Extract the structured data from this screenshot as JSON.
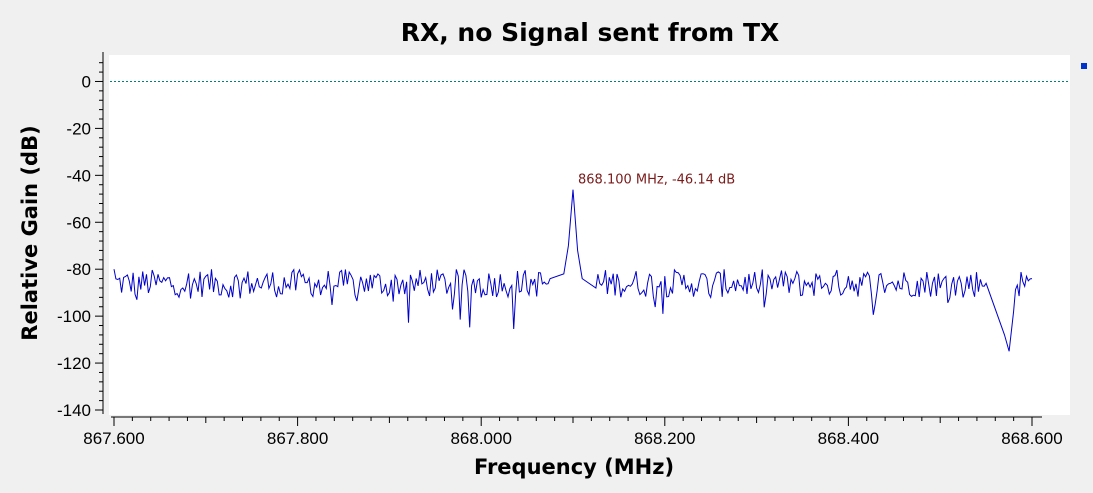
{
  "colors": {
    "background": "#f0f0f0",
    "plot_background": "#ffffff",
    "trace": "#0000cc",
    "reference_line": "#008080",
    "marker_text": "#7a1a1a",
    "legend_marker": "#0033cc"
  },
  "chart_data": {
    "type": "line",
    "title": "RX, no Signal sent from TX",
    "xlabel": "Frequency (MHz)",
    "ylabel": "Relative Gain (dB)",
    "xlim": [
      867.6,
      868.6
    ],
    "ylim": [
      -140,
      10
    ],
    "x_ticks": [
      "867.600",
      "867.800",
      "868.000",
      "868.200",
      "868.400",
      "868.600"
    ],
    "y_ticks": [
      "0",
      "-20",
      "-40",
      "-60",
      "-80",
      "-100",
      "-120",
      "-140"
    ],
    "grid": false,
    "reference_line_y": 0,
    "noise_floor": {
      "x_start": 867.6,
      "x_end": 868.6,
      "mean_db": -86,
      "min_db": -115
    },
    "peak": {
      "x": 868.1,
      "y": -46.14,
      "label": "868.100 MHz, -46.14 dB"
    },
    "legend": "right",
    "series": [
      {
        "x": [
          867.6,
          867.625,
          867.65,
          867.675,
          867.7,
          867.725,
          867.75,
          867.775,
          867.8,
          867.825,
          867.85,
          867.875,
          867.9,
          867.925,
          867.95,
          867.975,
          868.0,
          868.025,
          868.05,
          868.075,
          868.09,
          868.095,
          868.1,
          868.105,
          868.11,
          868.125,
          868.15,
          868.175,
          868.2,
          868.225,
          868.25,
          868.275,
          868.3,
          868.325,
          868.35,
          868.375,
          868.4,
          868.425,
          868.45,
          868.475,
          868.5,
          868.525,
          868.55,
          868.57,
          868.575,
          868.58,
          868.6
        ],
        "y": [
          -80,
          -93,
          -85,
          -88,
          -83,
          -92,
          -86,
          -89,
          -82,
          -91,
          -87,
          -84,
          -90,
          -85,
          -88,
          -83,
          -92,
          -86,
          -89,
          -84,
          -82,
          -70,
          -46.14,
          -72,
          -84,
          -88,
          -85,
          -90,
          -83,
          -87,
          -92,
          -85,
          -88,
          -84,
          -91,
          -86,
          -83,
          -90,
          -87,
          -85,
          -88,
          -92,
          -86,
          -108,
          -115,
          -98,
          -84
        ]
      }
    ]
  }
}
